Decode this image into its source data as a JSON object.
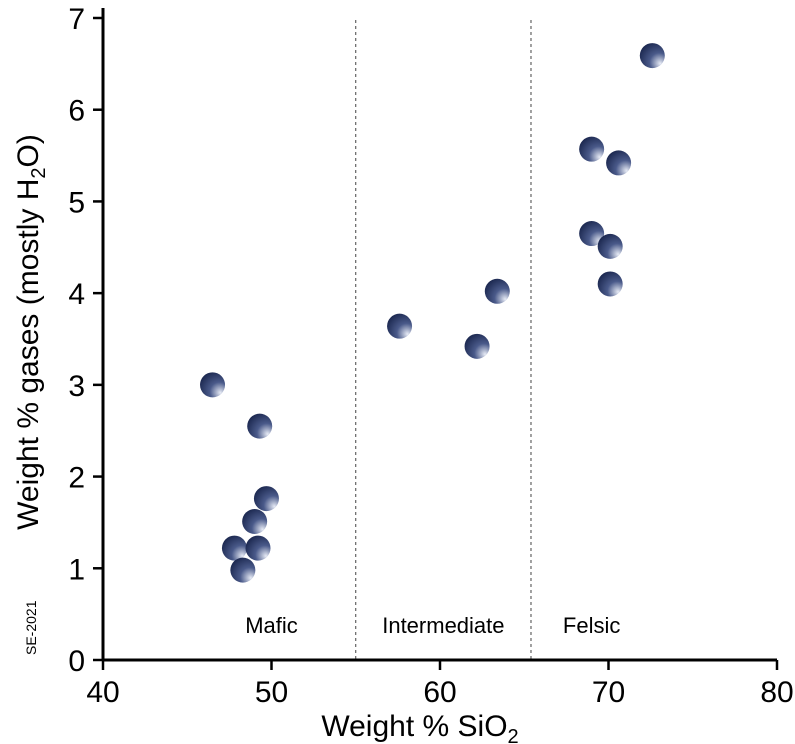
{
  "chart_data": {
    "type": "scatter",
    "xlabel_main": "Weight % SiO",
    "xlabel_sub": "2",
    "ylabel_pre": "Weight % gases (mostly H",
    "ylabel_sub": "2",
    "ylabel_post": "O)",
    "xlim": [
      40,
      80
    ],
    "ylim": [
      0,
      7
    ],
    "x_ticks": [
      40,
      50,
      60,
      70,
      80
    ],
    "y_ticks": [
      0,
      1,
      2,
      3,
      4,
      5,
      6,
      7
    ],
    "grid": false,
    "dividers": [
      55,
      65.4
    ],
    "regions": [
      {
        "label": "Mafic",
        "x": 50
      },
      {
        "label": "Intermediate",
        "x": 60.2
      },
      {
        "label": "Felsic",
        "x": 69
      }
    ],
    "credit": "SE-2021",
    "marker_colors": {
      "dark": "#17234a",
      "light": "#e8ecf6"
    },
    "points": [
      {
        "x": 46.5,
        "y": 3.0
      },
      {
        "x": 49.3,
        "y": 2.55
      },
      {
        "x": 49.7,
        "y": 1.76
      },
      {
        "x": 49.0,
        "y": 1.51
      },
      {
        "x": 47.8,
        "y": 1.22
      },
      {
        "x": 49.2,
        "y": 1.22
      },
      {
        "x": 48.3,
        "y": 0.98
      },
      {
        "x": 57.6,
        "y": 3.64
      },
      {
        "x": 62.2,
        "y": 3.42
      },
      {
        "x": 63.4,
        "y": 4.02
      },
      {
        "x": 69.0,
        "y": 5.57
      },
      {
        "x": 70.6,
        "y": 5.42
      },
      {
        "x": 69.0,
        "y": 4.65
      },
      {
        "x": 70.1,
        "y": 4.51
      },
      {
        "x": 70.1,
        "y": 4.1
      },
      {
        "x": 72.6,
        "y": 6.59
      }
    ]
  }
}
